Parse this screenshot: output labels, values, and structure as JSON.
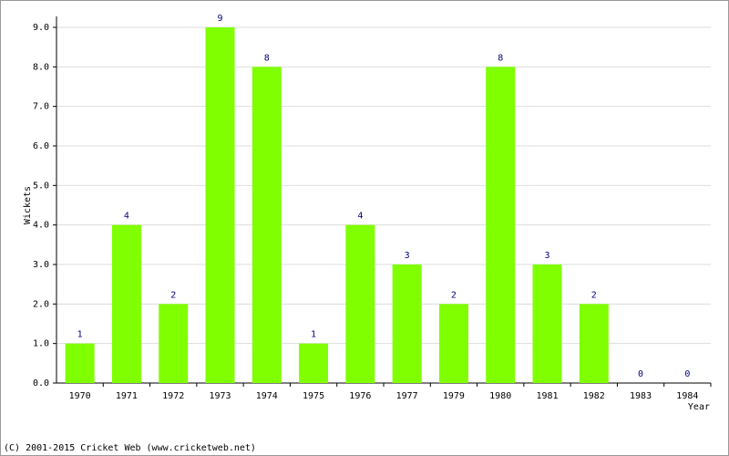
{
  "chart_data": {
    "type": "bar",
    "y_label": "Wickets",
    "x_label": "Year",
    "footer": "(C) 2001-2015 Cricket Web (www.cricketweb.net)",
    "categories": [
      "1970",
      "1971",
      "1972",
      "1973",
      "1974",
      "1975",
      "1976",
      "1977",
      "1979",
      "1980",
      "1981",
      "1982",
      "1983",
      "1984"
    ],
    "values": [
      1,
      4,
      2,
      9,
      8,
      1,
      4,
      3,
      2,
      8,
      3,
      2,
      0,
      0
    ],
    "color": "#7fff00",
    "label_color": "#000080",
    "ylim": [
      0,
      9
    ],
    "yticks": [
      {
        "value": 0,
        "label": "0.0"
      },
      {
        "value": 1,
        "label": "1.0"
      },
      {
        "value": 2,
        "label": "2.0"
      },
      {
        "value": 3,
        "label": "3.0"
      },
      {
        "value": 4,
        "label": "4.0"
      },
      {
        "value": 5,
        "label": "5.0"
      },
      {
        "value": 6,
        "label": "6.0"
      },
      {
        "value": 7,
        "label": "7.0"
      },
      {
        "value": 8,
        "label": "8.0"
      },
      {
        "value": 9,
        "label": "9.0"
      }
    ],
    "grid": true
  }
}
